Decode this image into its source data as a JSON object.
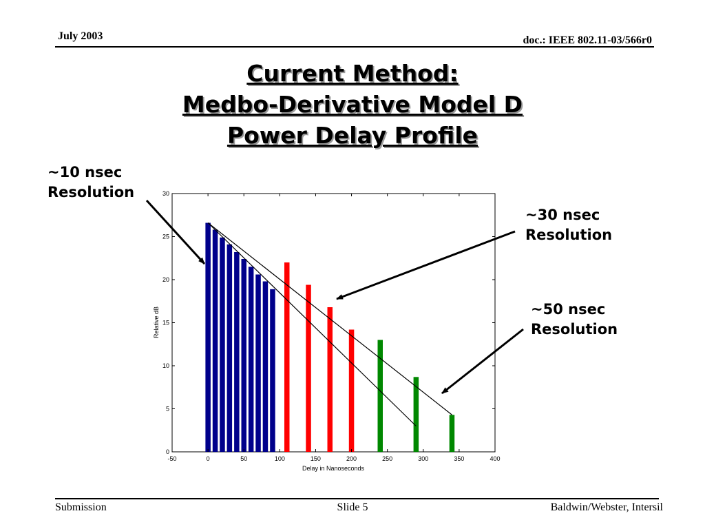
{
  "header": {
    "date": "July 2003",
    "doc": "doc.: IEEE 802.11-03/566r0"
  },
  "title": {
    "line1": "Current Method:",
    "line2": "Medbo-Derivative Model D",
    "line3": "Power Delay Profile"
  },
  "annotations": {
    "res10": {
      "line1": "~10 nsec",
      "line2": "Resolution"
    },
    "res30": {
      "line1": "~30 nsec",
      "line2": "Resolution"
    },
    "res50": {
      "line1": "~50 nsec",
      "line2": "Resolution"
    }
  },
  "footer": {
    "left": "Submission",
    "center": "Slide 5",
    "right": "Baldwin/Webster, Intersil"
  },
  "chart_data": {
    "type": "bar",
    "title": "",
    "xlabel": "Delay in Nanoseconds",
    "ylabel": "Relative dB",
    "xlim": [
      -50,
      400
    ],
    "ylim": [
      0,
      30
    ],
    "xticks": [
      -50,
      0,
      50,
      100,
      150,
      200,
      250,
      300,
      350,
      400
    ],
    "yticks": [
      0,
      5,
      10,
      15,
      20,
      25,
      30
    ],
    "grid": false,
    "series": [
      {
        "color": "#00008b",
        "x": [
          0,
          10,
          20,
          30,
          40,
          50,
          60,
          70,
          80,
          90
        ],
        "values": [
          26.6,
          25.8,
          24.9,
          24.1,
          23.2,
          22.4,
          21.5,
          20.6,
          19.8,
          18.9
        ]
      },
      {
        "color": "#ff0000",
        "x": [
          110,
          140,
          170,
          200
        ],
        "values": [
          22.0,
          19.4,
          16.8,
          14.2
        ]
      },
      {
        "color": "#008800",
        "x": [
          240,
          290,
          340
        ],
        "values": [
          13.0,
          8.7,
          4.3
        ]
      }
    ],
    "trend_lines": [
      {
        "from": [
          0,
          26.6
        ],
        "to": [
          340,
          4.3
        ]
      },
      {
        "from": [
          0,
          26.6
        ],
        "to": [
          290,
          3.0
        ]
      }
    ]
  }
}
